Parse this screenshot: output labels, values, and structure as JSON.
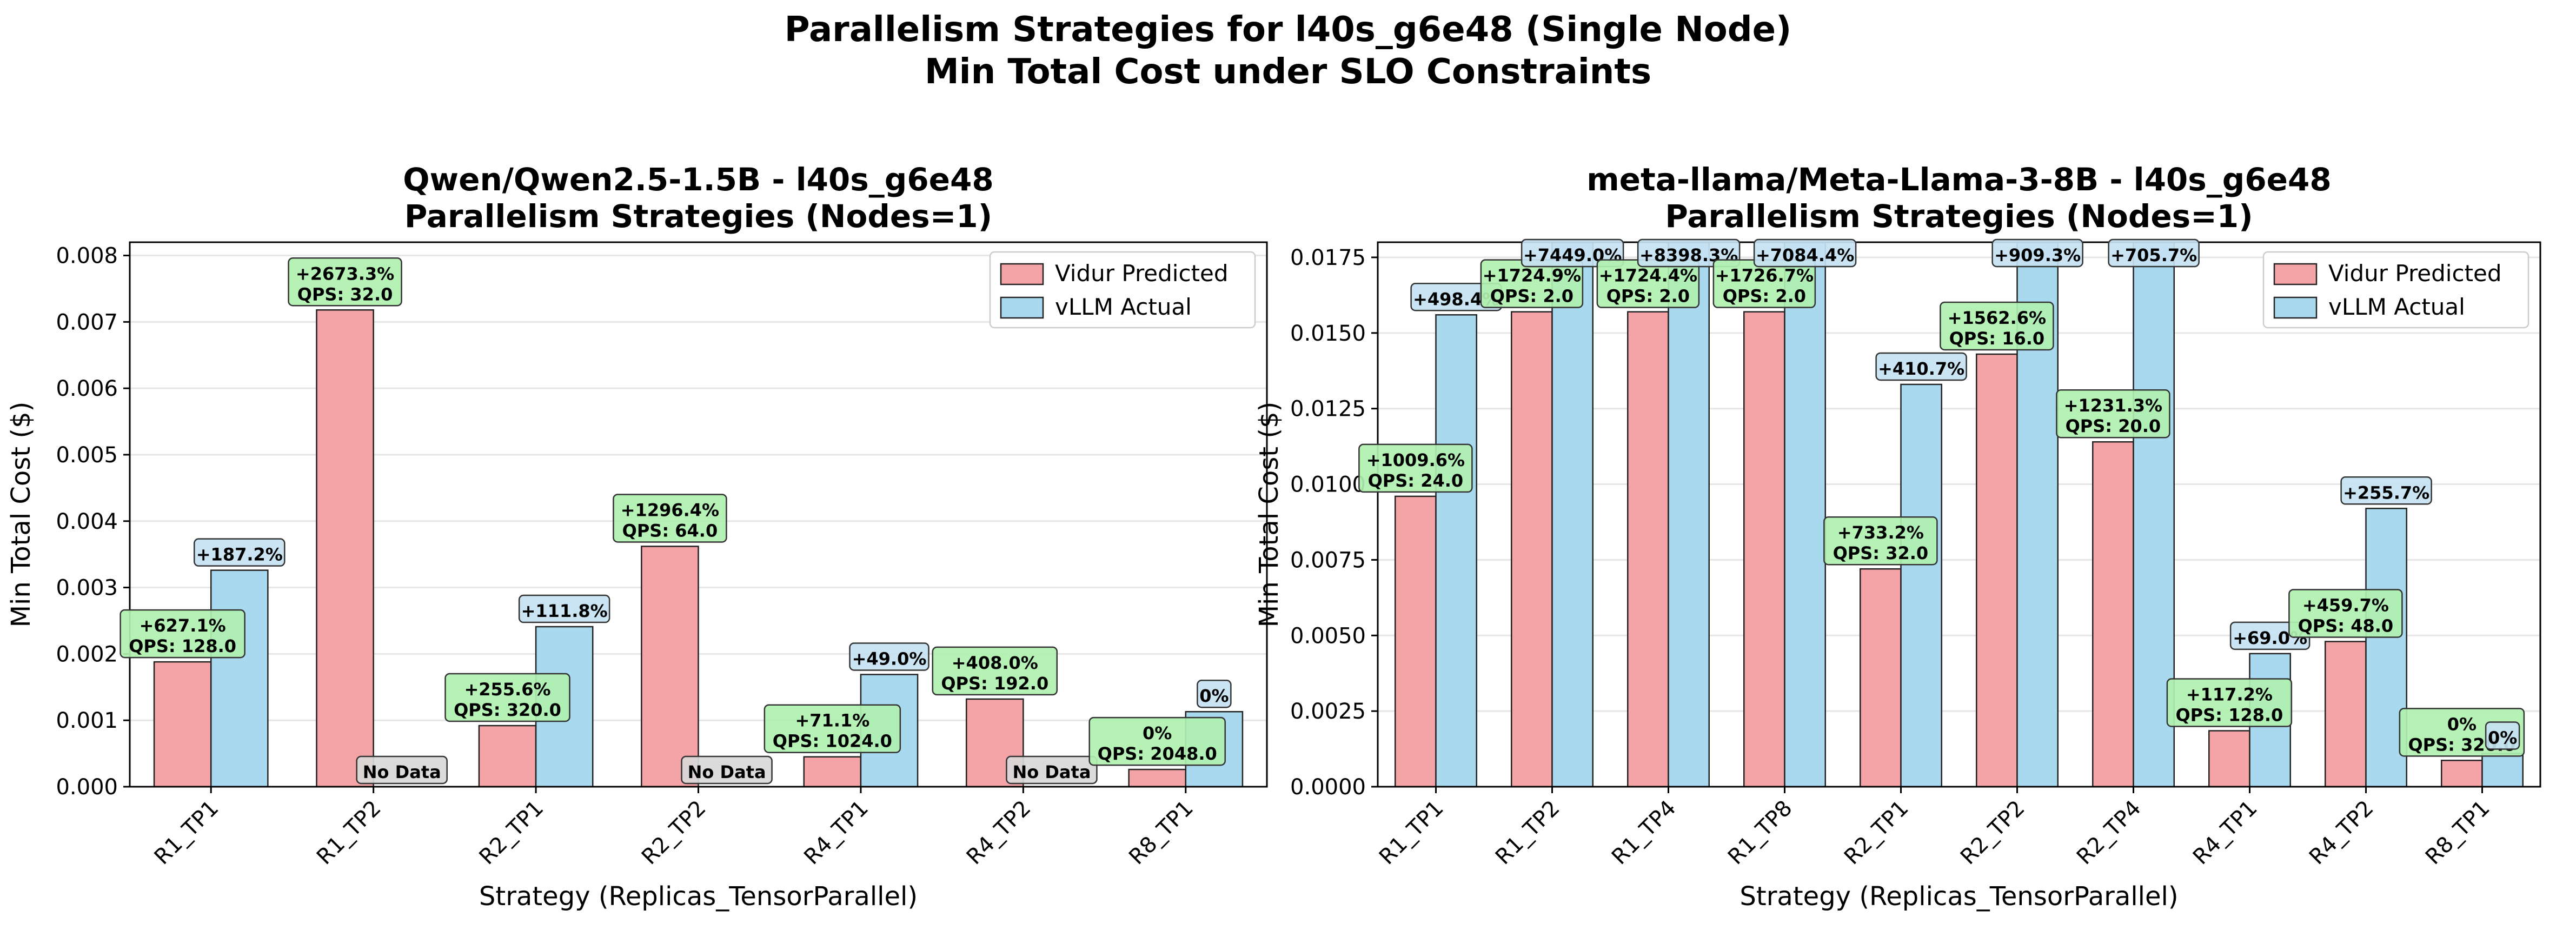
{
  "suptitle": [
    "Parallelism Strategies for l40s_g6e48 (Single Node)",
    "Min Total Cost under SLO Constraints"
  ],
  "colors": {
    "predicted": "#f4a4a6",
    "actual": "#a8d9ee",
    "qps_box": "#b0f0b0",
    "diff_box": "#c6e2f2",
    "nodata_box": "#d8d8d8",
    "grid": "#e6e6e6"
  },
  "chart_data": [
    {
      "type": "bar",
      "title": [
        "Qwen/Qwen2.5-1.5B - l40s_g6e48",
        "Parallelism Strategies (Nodes=1)"
      ],
      "xlabel": "Strategy (Replicas_TensorParallel)",
      "ylabel": "Min Total Cost ($)",
      "ylim": [
        0,
        0.0082
      ],
      "yticks": [
        "0.000",
        "0.001",
        "0.002",
        "0.003",
        "0.004",
        "0.005",
        "0.006",
        "0.007",
        "0.008"
      ],
      "ytick_values": [
        0,
        0.001,
        0.002,
        0.003,
        0.004,
        0.005,
        0.006,
        0.007,
        0.008
      ],
      "grid": true,
      "legend_position": "top-right",
      "categories": [
        "R1_TP1",
        "R1_TP2",
        "R2_TP1",
        "R2_TP2",
        "R4_TP1",
        "R4_TP2",
        "R8_TP1"
      ],
      "series": [
        {
          "name": "Vidur Predicted",
          "values": [
            0.00188,
            0.00718,
            0.00092,
            0.00362,
            0.00045,
            0.00132,
            0.00026
          ]
        },
        {
          "name": "vLLM Actual",
          "values": [
            0.00326,
            null,
            0.00241,
            null,
            0.00169,
            null,
            0.00113
          ]
        }
      ],
      "qps_labels": [
        [
          "+627.1%",
          "QPS: 128.0"
        ],
        [
          "+2673.3%",
          "QPS: 32.0"
        ],
        [
          "+255.6%",
          "QPS: 320.0"
        ],
        [
          "+1296.4%",
          "QPS: 64.0"
        ],
        [
          "+71.1%",
          "QPS: 1024.0"
        ],
        [
          "+408.0%",
          "QPS: 192.0"
        ],
        [
          "0%",
          "QPS: 2048.0"
        ]
      ],
      "diff_labels": [
        "+187.2%",
        "No Data",
        "+111.8%",
        "No Data",
        "+49.0%",
        "No Data",
        "0%"
      ]
    },
    {
      "type": "bar",
      "title": [
        "meta-llama/Meta-Llama-3-8B - l40s_g6e48",
        "Parallelism Strategies (Nodes=1)"
      ],
      "xlabel": "Strategy (Replicas_TensorParallel)",
      "ylabel": "Min Total Cost ($)",
      "ylim": [
        0,
        0.018
      ],
      "yticks": [
        "0.0000",
        "0.0025",
        "0.0050",
        "0.0075",
        "0.0100",
        "0.0125",
        "0.0150",
        "0.0175"
      ],
      "ytick_values": [
        0,
        0.0025,
        0.005,
        0.0075,
        0.01,
        0.0125,
        0.015,
        0.0175
      ],
      "grid": true,
      "legend_position": "top-right",
      "categories": [
        "R1_TP1",
        "R1_TP2",
        "R1_TP4",
        "R1_TP8",
        "R2_TP1",
        "R2_TP2",
        "R2_TP4",
        "R4_TP1",
        "R4_TP2",
        "R8_TP1"
      ],
      "series": [
        {
          "name": "Vidur Predicted",
          "values": [
            0.0096,
            0.0157,
            0.0157,
            0.0157,
            0.0072,
            0.0143,
            0.0114,
            0.00185,
            0.0048,
            0.00087
          ]
        },
        {
          "name": "vLLM Actual",
          "values": [
            0.0156,
            0.0185,
            0.0185,
            0.0185,
            0.0133,
            0.0185,
            0.0185,
            0.0044,
            0.0092,
            0.0011
          ]
        }
      ],
      "qps_labels": [
        [
          "+1009.6%",
          "QPS: 24.0"
        ],
        [
          "+1724.9%",
          "QPS: 2.0"
        ],
        [
          "+1724.4%",
          "QPS: 2.0"
        ],
        [
          "+1726.7%",
          "QPS: 2.0"
        ],
        [
          "+733.2%",
          "QPS: 32.0"
        ],
        [
          "+1562.6%",
          "QPS: 16.0"
        ],
        [
          "+1231.3%",
          "QPS: 20.0"
        ],
        [
          "+117.2%",
          "QPS: 128.0"
        ],
        [
          "+459.7%",
          "QPS: 48.0"
        ],
        [
          "0%",
          "QPS: 320.0"
        ]
      ],
      "diff_labels": [
        "+498.4%",
        "+7449.0%",
        "+8398.3%",
        "+7084.4%",
        "+410.7%",
        "+909.3%",
        "+705.7%",
        "+69.0%",
        "+255.7%",
        "0%"
      ]
    }
  ]
}
